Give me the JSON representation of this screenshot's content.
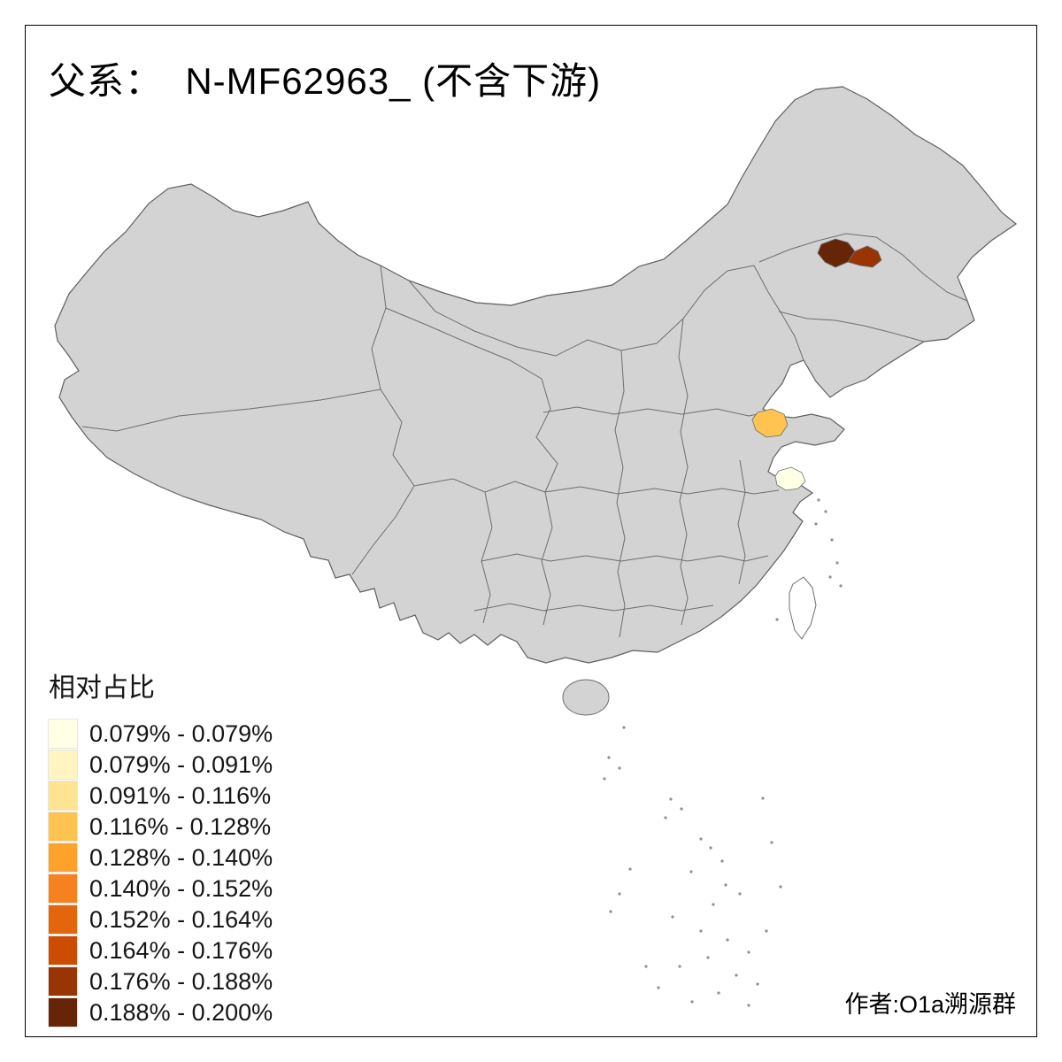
{
  "title": "父系：  N-MF62963_ (不含下游)",
  "legend": {
    "title": "相对占比",
    "items": [
      {
        "label": "0.079% - 0.079%",
        "color": "#FFFFE5"
      },
      {
        "label": "0.079% - 0.091%",
        "color": "#FFF5C0"
      },
      {
        "label": "0.091% - 0.116%",
        "color": "#FEE391"
      },
      {
        "label": "0.116% - 0.128%",
        "color": "#FEC44F"
      },
      {
        "label": "0.128% - 0.140%",
        "color": "#FEA22B"
      },
      {
        "label": "0.140% - 0.152%",
        "color": "#F5821E"
      },
      {
        "label": "0.152% - 0.164%",
        "color": "#E3650C"
      },
      {
        "label": "0.164% - 0.176%",
        "color": "#CC4C02"
      },
      {
        "label": "0.176% - 0.188%",
        "color": "#993404"
      },
      {
        "label": "0.188% - 0.200%",
        "color": "#662506"
      }
    ]
  },
  "credit": "作者:O1a溯源群",
  "map": {
    "land_fill": "#D3D3D3",
    "border_color": "#6E6E6E",
    "patches": [
      {
        "area": "northeast-west",
        "color": "#662506"
      },
      {
        "area": "northeast-east",
        "color": "#993404"
      },
      {
        "area": "east-coast-north",
        "color": "#FEC44F"
      },
      {
        "area": "east-coast-south",
        "color": "#FFFFE5"
      }
    ]
  }
}
